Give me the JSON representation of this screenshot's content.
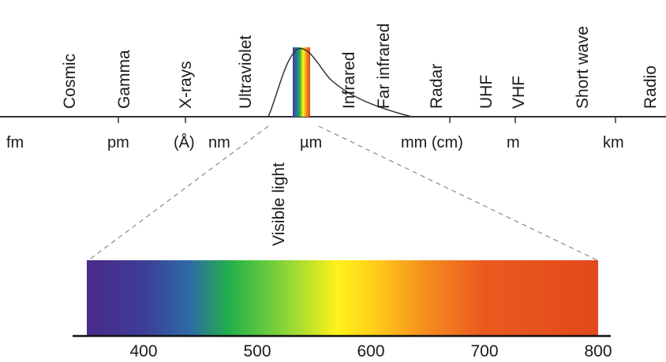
{
  "bands": [
    "Cosmic",
    "Gamma",
    "X-rays",
    "Ultraviolet",
    "Infrared",
    "Far infrared",
    "Radar",
    "UHF",
    "VHF",
    "Short wave",
    "Radio"
  ],
  "units": [
    "fm",
    "pm",
    "(Å)",
    "nm",
    "µm",
    "mm (cm)",
    "m",
    "km"
  ],
  "visible_label": "Visible light",
  "spectrum": {
    "ticks": [
      "400",
      "500",
      "600",
      "700",
      "800"
    ],
    "range_nm": [
      350,
      800
    ],
    "stops": [
      {
        "nm": 350,
        "color": "#4a2a8a"
      },
      {
        "nm": 400,
        "color": "#3c3d96"
      },
      {
        "nm": 440,
        "color": "#2e6aa6"
      },
      {
        "nm": 475,
        "color": "#22b04a"
      },
      {
        "nm": 520,
        "color": "#7fd23a"
      },
      {
        "nm": 570,
        "color": "#fff21a"
      },
      {
        "nm": 600,
        "color": "#ffd21a"
      },
      {
        "nm": 650,
        "color": "#f58a1e"
      },
      {
        "nm": 700,
        "color": "#ea5a1e"
      },
      {
        "nm": 800,
        "color": "#e2481c"
      }
    ]
  }
}
